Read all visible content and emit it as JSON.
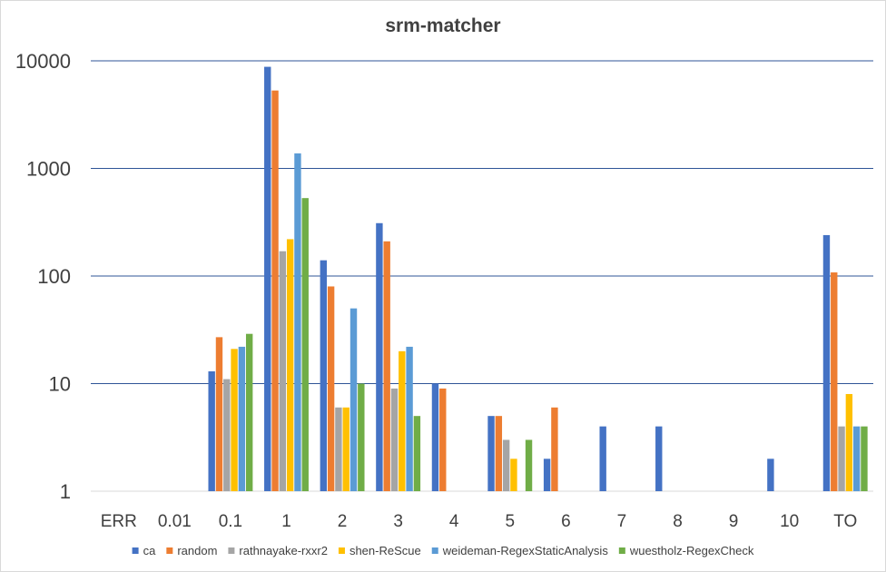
{
  "chart_data": {
    "type": "bar",
    "title": "srm-matcher",
    "xlabel": "",
    "ylabel": "",
    "yscale": "log",
    "ylim": [
      1,
      10000
    ],
    "yticks": [
      "1",
      "10",
      "100",
      "1000",
      "10000"
    ],
    "grid": true,
    "legend_position": "bottom",
    "categories": [
      "ERR",
      "0.01",
      "0.1",
      "1",
      "2",
      "3",
      "4",
      "5",
      "6",
      "7",
      "8",
      "9",
      "10",
      "TO"
    ],
    "series": [
      {
        "name": "ca",
        "color": "#4472C4",
        "values": [
          null,
          null,
          13,
          8800,
          140,
          310,
          10,
          5,
          2,
          4,
          4,
          null,
          2,
          240
        ]
      },
      {
        "name": "random",
        "color": "#ED7D31",
        "values": [
          null,
          null,
          27,
          5300,
          80,
          210,
          9,
          5,
          6,
          null,
          null,
          null,
          null,
          108
        ]
      },
      {
        "name": "rathnayake-rxxr2",
        "color": "#A5A5A5",
        "values": [
          null,
          null,
          11,
          170,
          6,
          9,
          null,
          3,
          null,
          null,
          null,
          null,
          null,
          4
        ]
      },
      {
        "name": "shen-ReScue",
        "color": "#FFC000",
        "values": [
          null,
          null,
          21,
          220,
          6,
          20,
          null,
          2,
          null,
          null,
          null,
          null,
          null,
          8
        ]
      },
      {
        "name": "weideman-RegexStaticAnalysis",
        "color": "#5B9BD5",
        "values": [
          null,
          null,
          22,
          1380,
          50,
          22,
          null,
          null,
          null,
          null,
          null,
          null,
          null,
          4
        ]
      },
      {
        "name": "wuestholz-RegexCheck",
        "color": "#70AD47",
        "values": [
          null,
          null,
          29,
          530,
          10,
          5,
          null,
          3,
          null,
          null,
          null,
          null,
          null,
          4
        ]
      }
    ]
  }
}
